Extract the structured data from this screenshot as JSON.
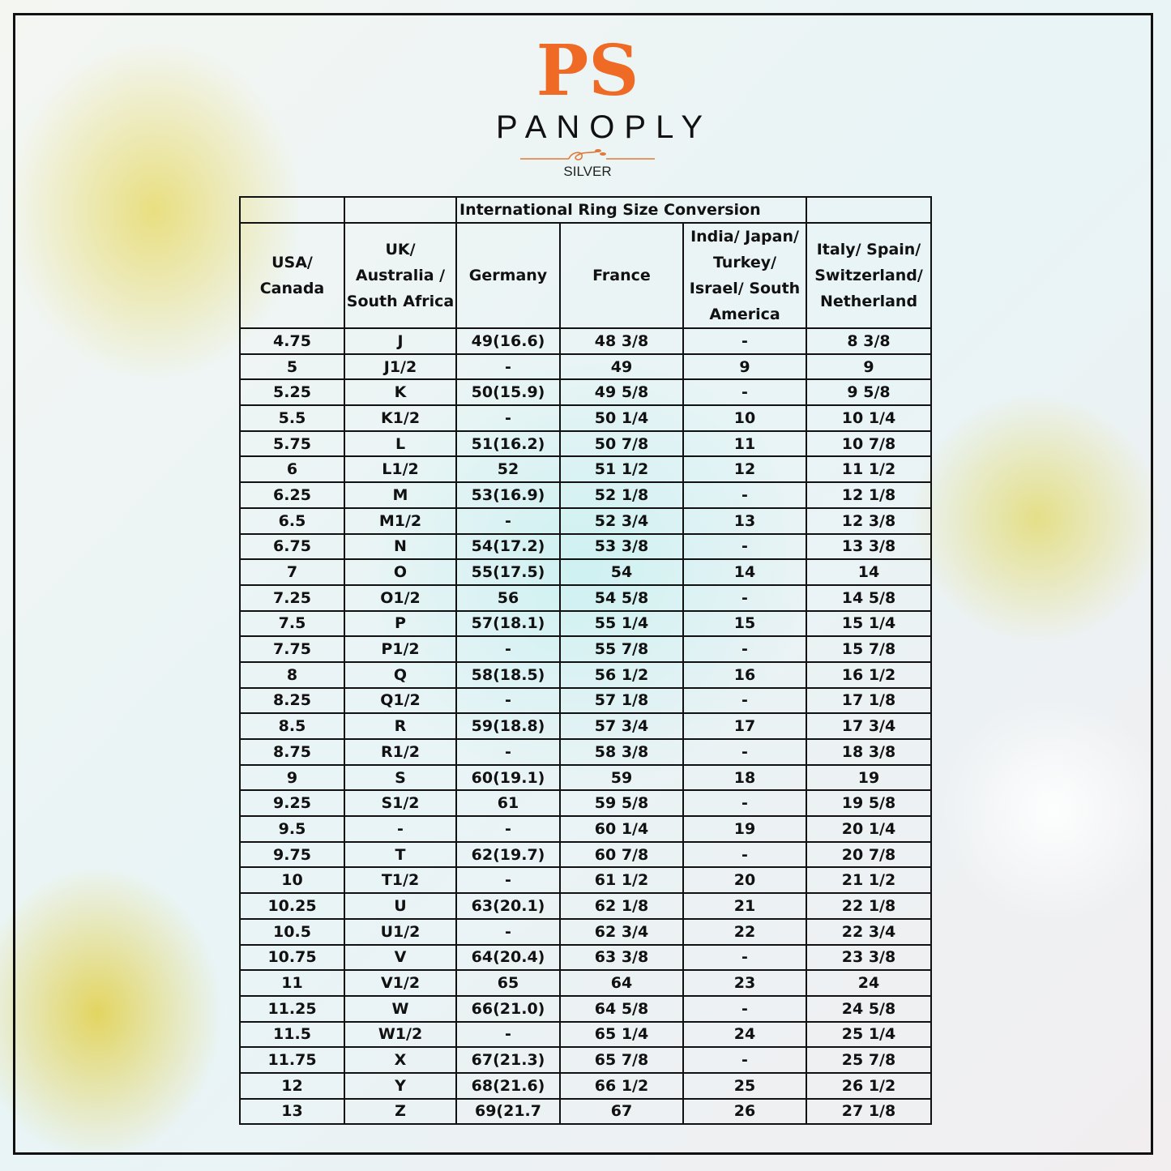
{
  "logo": {
    "monogram": "PS",
    "brand": "PANOPLY",
    "subtitle": "SILVER",
    "accent_color": "#ef6a25"
  },
  "table": {
    "title": "International Ring Size Conversion",
    "headers": [
      "USA/ Canada",
      "UK/ Australia / South Africa",
      "Germany",
      "France",
      "India/ Japan/ Turkey/ Israel/ South America",
      "Italy/ Spain/ Switzerland/ Netherland"
    ],
    "rows": [
      [
        "4.75",
        "J",
        "49(16.6)",
        "48 3/8",
        "-",
        "8 3/8"
      ],
      [
        "5",
        "J1/2",
        "-",
        "49",
        "9",
        "9"
      ],
      [
        "5.25",
        "K",
        "50(15.9)",
        "49 5/8",
        "-",
        "9 5/8"
      ],
      [
        "5.5",
        "K1/2",
        "-",
        "50 1/4",
        "10",
        "10 1/4"
      ],
      [
        "5.75",
        "L",
        "51(16.2)",
        "50 7/8",
        "11",
        "10 7/8"
      ],
      [
        "6",
        "L1/2",
        "52",
        "51 1/2",
        "12",
        "11 1/2"
      ],
      [
        "6.25",
        "M",
        "53(16.9)",
        "52 1/8",
        "-",
        "12 1/8"
      ],
      [
        "6.5",
        "M1/2",
        "-",
        "52 3/4",
        "13",
        "12 3/8"
      ],
      [
        "6.75",
        "N",
        "54(17.2)",
        "53 3/8",
        "-",
        "13 3/8"
      ],
      [
        "7",
        "O",
        "55(17.5)",
        "54",
        "14",
        "14"
      ],
      [
        "7.25",
        "O1/2",
        "56",
        "54 5/8",
        "-",
        "14 5/8"
      ],
      [
        "7.5",
        "P",
        "57(18.1)",
        "55 1/4",
        "15",
        "15 1/4"
      ],
      [
        "7.75",
        "P1/2",
        "-",
        "55 7/8",
        "-",
        "15 7/8"
      ],
      [
        "8",
        "Q",
        "58(18.5)",
        "56 1/2",
        "16",
        "16 1/2"
      ],
      [
        "8.25",
        "Q1/2",
        "-",
        "57 1/8",
        "-",
        "17 1/8"
      ],
      [
        "8.5",
        "R",
        "59(18.8)",
        "57 3/4",
        "17",
        "17 3/4"
      ],
      [
        "8.75",
        "R1/2",
        "-",
        "58 3/8",
        "-",
        "18 3/8"
      ],
      [
        "9",
        "S",
        "60(19.1)",
        "59",
        "18",
        "19"
      ],
      [
        "9.25",
        "S1/2",
        "61",
        "59 5/8",
        "-",
        "19 5/8"
      ],
      [
        "9.5",
        "-",
        "-",
        "60 1/4",
        "19",
        "20 1/4"
      ],
      [
        "9.75",
        "T",
        "62(19.7)",
        "60 7/8",
        "-",
        "20 7/8"
      ],
      [
        "10",
        "T1/2",
        "-",
        "61 1/2",
        "20",
        "21 1/2"
      ],
      [
        "10.25",
        "U",
        "63(20.1)",
        "62 1/8",
        "21",
        "22 1/8"
      ],
      [
        "10.5",
        "U1/2",
        "-",
        "62 3/4",
        "22",
        "22 3/4"
      ],
      [
        "10.75",
        "V",
        "64(20.4)",
        "63 3/8",
        "-",
        "23 3/8"
      ],
      [
        "11",
        "V1/2",
        "65",
        "64",
        "23",
        "24"
      ],
      [
        "11.25",
        "W",
        "66(21.0)",
        "64 5/8",
        "-",
        "24 5/8"
      ],
      [
        "11.5",
        "W1/2",
        "-",
        "65 1/4",
        "24",
        "25 1/4"
      ],
      [
        "11.75",
        "X",
        "67(21.3)",
        "65 7/8",
        "-",
        "25 7/8"
      ],
      [
        "12",
        "Y",
        "68(21.6)",
        "66 1/2",
        "25",
        "26 1/2"
      ],
      [
        "13",
        "Z",
        "69(21.7",
        "67",
        "26",
        "27 1/8"
      ]
    ]
  }
}
